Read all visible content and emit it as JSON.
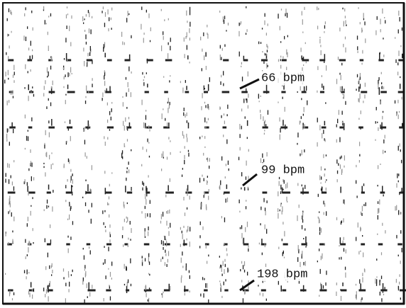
{
  "annotations": [
    "66 bpm",
    "99 bpm",
    "198 bpm"
  ]
}
